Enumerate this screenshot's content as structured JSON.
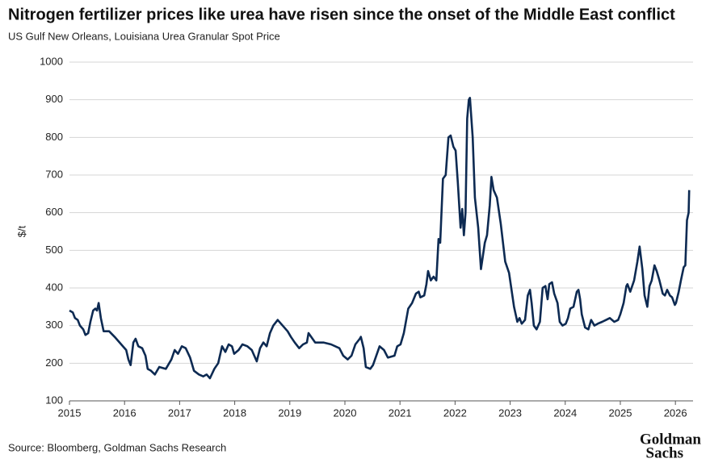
{
  "chart_data": {
    "type": "line",
    "title": "Nitrogen fertilizer prices like urea have risen since the onset of the Middle East conflict",
    "subtitle": "US Gulf New Orleans, Louisiana Urea Granular Spot Price",
    "y_label": "$/t",
    "source": "Source: Bloomberg, Goldman Sachs Research",
    "logo": [
      "Goldman",
      "Sachs"
    ],
    "xlim": [
      2015,
      2026.32
    ],
    "xticks": [
      2015,
      2016,
      2017,
      2018,
      2019,
      2020,
      2021,
      2022,
      2023,
      2024,
      2025,
      2026
    ],
    "ylim": [
      100,
      1000
    ],
    "yticks": [
      100,
      200,
      300,
      400,
      500,
      600,
      700,
      800,
      900,
      1000
    ],
    "grid": true,
    "series": [
      {
        "color": "#0d2a52",
        "x": [
          2015.0,
          2015.06,
          2015.1,
          2015.15,
          2015.19,
          2015.25,
          2015.29,
          2015.34,
          2015.38,
          2015.43,
          2015.47,
          2015.5,
          2015.53,
          2015.57,
          2015.62,
          2015.72,
          2015.82,
          2015.94,
          2016.03,
          2016.07,
          2016.11,
          2016.16,
          2016.2,
          2016.25,
          2016.32,
          2016.38,
          2016.42,
          2016.48,
          2016.55,
          2016.63,
          2016.75,
          2016.85,
          2016.91,
          2016.97,
          2017.04,
          2017.11,
          2017.19,
          2017.26,
          2017.35,
          2017.43,
          2017.49,
          2017.55,
          2017.63,
          2017.7,
          2017.77,
          2017.83,
          2017.89,
          2017.95,
          2017.99,
          2018.07,
          2018.14,
          2018.23,
          2018.31,
          2018.4,
          2018.46,
          2018.52,
          2018.58,
          2018.64,
          2018.7,
          2018.78,
          2018.87,
          2018.96,
          2019.02,
          2019.09,
          2019.17,
          2019.24,
          2019.31,
          2019.34,
          2019.46,
          2019.61,
          2019.75,
          2019.9,
          2019.97,
          2020.05,
          2020.12,
          2020.19,
          2020.27,
          2020.29,
          2020.34,
          2020.38,
          2020.46,
          2020.51,
          2020.63,
          2020.71,
          2020.78,
          2020.9,
          2020.95,
          2021.01,
          2021.07,
          2021.15,
          2021.22,
          2021.29,
          2021.34,
          2021.37,
          2021.44,
          2021.48,
          2021.51,
          2021.56,
          2021.61,
          2021.66,
          2021.7,
          2021.73,
          2021.78,
          2021.83,
          2021.88,
          2021.92,
          2021.97,
          2022.01,
          2022.05,
          2022.1,
          2022.13,
          2022.16,
          2022.19,
          2022.22,
          2022.25,
          2022.27,
          2022.32,
          2022.36,
          2022.42,
          2022.47,
          2022.54,
          2022.58,
          2022.63,
          2022.66,
          2022.7,
          2022.76,
          2022.83,
          2022.91,
          2022.98,
          2023.02,
          2023.07,
          2023.13,
          2023.17,
          2023.21,
          2023.27,
          2023.32,
          2023.36,
          2023.39,
          2023.43,
          2023.48,
          2023.54,
          2023.59,
          2023.64,
          2023.68,
          2023.71,
          2023.76,
          2023.8,
          2023.86,
          2023.9,
          2023.95,
          2024.01,
          2024.05,
          2024.09,
          2024.15,
          2024.21,
          2024.24,
          2024.27,
          2024.3,
          2024.36,
          2024.42,
          2024.47,
          2024.53,
          2024.59,
          2024.67,
          2024.74,
          2024.81,
          2024.89,
          2024.96,
          2025.0,
          2025.06,
          2025.11,
          2025.13,
          2025.18,
          2025.25,
          2025.31,
          2025.35,
          2025.4,
          2025.44,
          2025.49,
          2025.53,
          2025.57,
          2025.62,
          2025.66,
          2025.71,
          2025.77,
          2025.81,
          2025.85,
          2025.9,
          2025.94,
          2025.99,
          2026.01,
          2026.06,
          2026.1,
          2026.15,
          2026.18,
          2026.21,
          2026.24,
          2026.25
        ],
        "values": [
          340,
          335,
          320,
          315,
          300,
          290,
          275,
          280,
          310,
          340,
          345,
          340,
          360,
          320,
          285,
          285,
          270,
          250,
          235,
          210,
          195,
          255,
          265,
          245,
          240,
          220,
          185,
          180,
          170,
          190,
          185,
          210,
          235,
          225,
          245,
          240,
          215,
          180,
          170,
          165,
          170,
          160,
          185,
          200,
          245,
          230,
          250,
          245,
          225,
          235,
          250,
          245,
          235,
          205,
          240,
          255,
          245,
          280,
          300,
          315,
          300,
          285,
          270,
          255,
          240,
          250,
          255,
          280,
          255,
          255,
          250,
          240,
          220,
          210,
          220,
          250,
          265,
          270,
          240,
          190,
          185,
          195,
          245,
          235,
          215,
          220,
          245,
          250,
          280,
          345,
          360,
          385,
          390,
          375,
          380,
          410,
          445,
          420,
          430,
          420,
          530,
          520,
          690,
          700,
          800,
          805,
          775,
          765,
          680,
          560,
          610,
          540,
          600,
          850,
          900,
          905,
          800,
          640,
          560,
          450,
          520,
          540,
          620,
          695,
          660,
          640,
          570,
          470,
          440,
          400,
          350,
          310,
          320,
          305,
          315,
          380,
          395,
          360,
          300,
          290,
          310,
          400,
          405,
          370,
          410,
          415,
          385,
          360,
          310,
          300,
          305,
          320,
          345,
          350,
          390,
          395,
          370,
          330,
          295,
          290,
          315,
          300,
          305,
          310,
          315,
          320,
          310,
          315,
          330,
          360,
          405,
          410,
          390,
          420,
          470,
          510,
          450,
          380,
          350,
          405,
          420,
          460,
          445,
          420,
          385,
          380,
          395,
          380,
          375,
          355,
          360,
          390,
          420,
          455,
          460,
          580,
          600,
          660
        ]
      }
    ]
  }
}
